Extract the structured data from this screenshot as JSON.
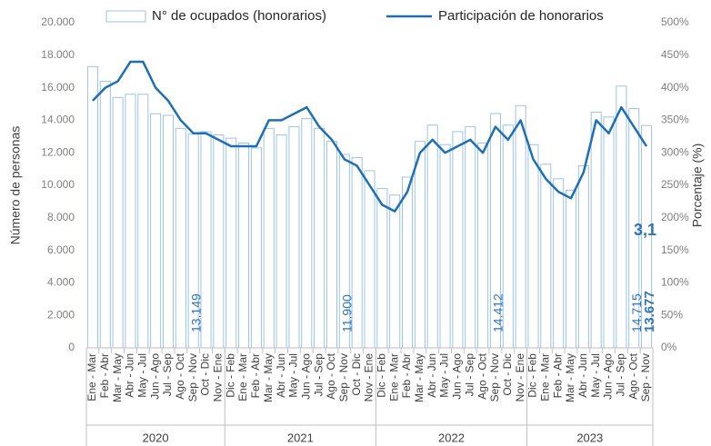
{
  "chart_data": {
    "type": "bar_line",
    "categories": [
      "Ene - Mar",
      "Feb - Abr",
      "Mar - May",
      "Abr - Jun",
      "May - Jul",
      "Jun - Ago",
      "Jul - Sep",
      "Ago - Oct",
      "Sep - Nov",
      "Oct - Dic",
      "Nov - Ene",
      "Dic - Feb",
      "Ene - Mar",
      "Feb - Abr",
      "Mar - May",
      "Abr - Jun",
      "May - Jul",
      "Jun - Ago",
      "Jul - Sep",
      "Ago - Oct",
      "Sep - Nov",
      "Oct - Dic",
      "Nov - Ene",
      "Dic - Feb",
      "Ene - Mar",
      "Feb - Abr",
      "Mar - May",
      "Abr - Jun",
      "May - Jul",
      "Jun - Ago",
      "Jul - Sep",
      "Ago - Oct",
      "Sep - Nov",
      "Oct - Dic",
      "Nov - Ene",
      "Dic - Feb",
      "Ene - Mar",
      "Feb - Abr",
      "Mar - May",
      "Abr - Jun",
      "May - Jul",
      "Jun - Ago",
      "Jul - Sep",
      "Ago - Oct",
      "Sep - Nov"
    ],
    "category_years": [
      "2020",
      "2020",
      "2020",
      "2020",
      "2020",
      "2020",
      "2020",
      "2020",
      "2020",
      "2020",
      "2020",
      "2021",
      "2021",
      "2021",
      "2021",
      "2021",
      "2021",
      "2021",
      "2021",
      "2021",
      "2021",
      "2021",
      "2021",
      "2022",
      "2022",
      "2022",
      "2022",
      "2022",
      "2022",
      "2022",
      "2022",
      "2022",
      "2022",
      "2022",
      "2022",
      "2023",
      "2023",
      "2023",
      "2023",
      "2023",
      "2023",
      "2023",
      "2023",
      "2023",
      "2023"
    ],
    "series": [
      {
        "name": "N° de ocupados (honorarios)",
        "type": "bar",
        "color": "#9dc3e6",
        "values": [
          17300,
          16400,
          15400,
          15600,
          15600,
          14400,
          14300,
          13500,
          13149,
          13300,
          13100,
          12900,
          12600,
          12300,
          13500,
          13100,
          13600,
          14100,
          13500,
          12700,
          11900,
          11700,
          10900,
          9800,
          9400,
          10500,
          12700,
          13700,
          12500,
          13300,
          13600,
          12600,
          14412,
          13700,
          14900,
          12500,
          11300,
          10400,
          9700,
          11200,
          14500,
          14200,
          16100,
          14715,
          13677
        ],
        "value_labels": [
          null,
          null,
          null,
          null,
          null,
          null,
          null,
          null,
          "13.149",
          null,
          null,
          null,
          null,
          null,
          null,
          null,
          null,
          null,
          null,
          null,
          "11.900",
          null,
          null,
          null,
          null,
          null,
          null,
          null,
          null,
          null,
          null,
          null,
          "14.412",
          null,
          null,
          null,
          null,
          null,
          null,
          null,
          null,
          null,
          null,
          "14.715",
          "13.677"
        ]
      },
      {
        "name": "Participación de honorarios",
        "type": "line",
        "color": "#1f6fb5",
        "axis": "y2",
        "values": [
          380,
          400,
          410,
          440,
          440,
          400,
          380,
          350,
          330,
          330,
          320,
          310,
          310,
          310,
          350,
          350,
          360,
          370,
          340,
          320,
          290,
          280,
          250,
          220,
          210,
          240,
          300,
          320,
          300,
          310,
          320,
          300,
          340,
          320,
          350,
          290,
          260,
          240,
          230,
          270,
          350,
          330,
          370,
          340,
          310
        ]
      }
    ],
    "annotations": [
      "3,1"
    ],
    "ylabel": "Número de personas",
    "y2label": "Porcentaje (%)",
    "ylim": [
      0,
      20000
    ],
    "yticks": [
      0,
      {
        "value": 2000,
        "label": "2.000"
      },
      {
        "value": 4000,
        "label": "4.000"
      },
      {
        "value": 6000,
        "label": "6.000"
      },
      {
        "value": 8000,
        "label": "8.000"
      },
      {
        "value": 10000,
        "label": "10.000"
      },
      {
        "value": 12000,
        "label": "12.000"
      },
      {
        "value": 14000,
        "label": "14.000"
      },
      {
        "value": 16000,
        "label": "16.000"
      },
      {
        "value": 18000,
        "label": "18.000"
      },
      {
        "value": 20000,
        "label": "20.000"
      }
    ],
    "y2lim": [
      0,
      500
    ],
    "y2ticks": [
      {
        "value": 0,
        "label": "0%"
      },
      {
        "value": 50,
        "label": "50%"
      },
      {
        "value": 100,
        "label": "100%"
      },
      {
        "value": 150,
        "label": "150%"
      },
      {
        "value": 200,
        "label": "200%"
      },
      {
        "value": 250,
        "label": "250%"
      },
      {
        "value": 300,
        "label": "300%"
      },
      {
        "value": 350,
        "label": "350%"
      },
      {
        "value": 400,
        "label": "400%"
      },
      {
        "value": 450,
        "label": "450%"
      },
      {
        "value": 500,
        "label": "500%"
      }
    ]
  }
}
